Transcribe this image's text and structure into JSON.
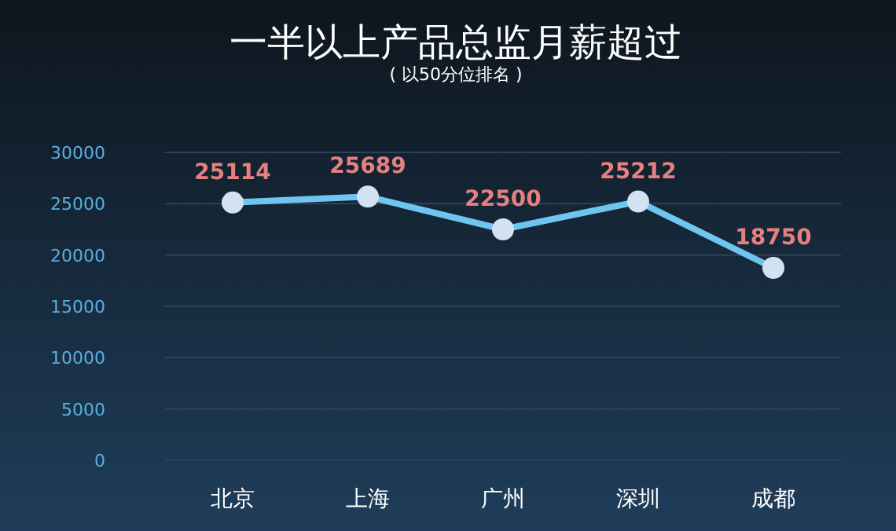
{
  "chart_data": {
    "type": "line",
    "title": "一半以上产品总监月薪超过",
    "subtitle": "( 以50分位排名 )",
    "categories": [
      "北京",
      "上海",
      "广州",
      "深圳",
      "成都"
    ],
    "series": [
      {
        "color": "#6ec6f0",
        "values": [
          25114,
          25689,
          22500,
          25212,
          18750
        ]
      }
    ],
    "ylim": [
      0,
      30000
    ],
    "yticks": [
      0,
      5000,
      10000,
      15000,
      20000,
      25000,
      30000
    ],
    "grid": "y",
    "marker": "circle",
    "line_style": "solid",
    "data_labels": true
  }
}
